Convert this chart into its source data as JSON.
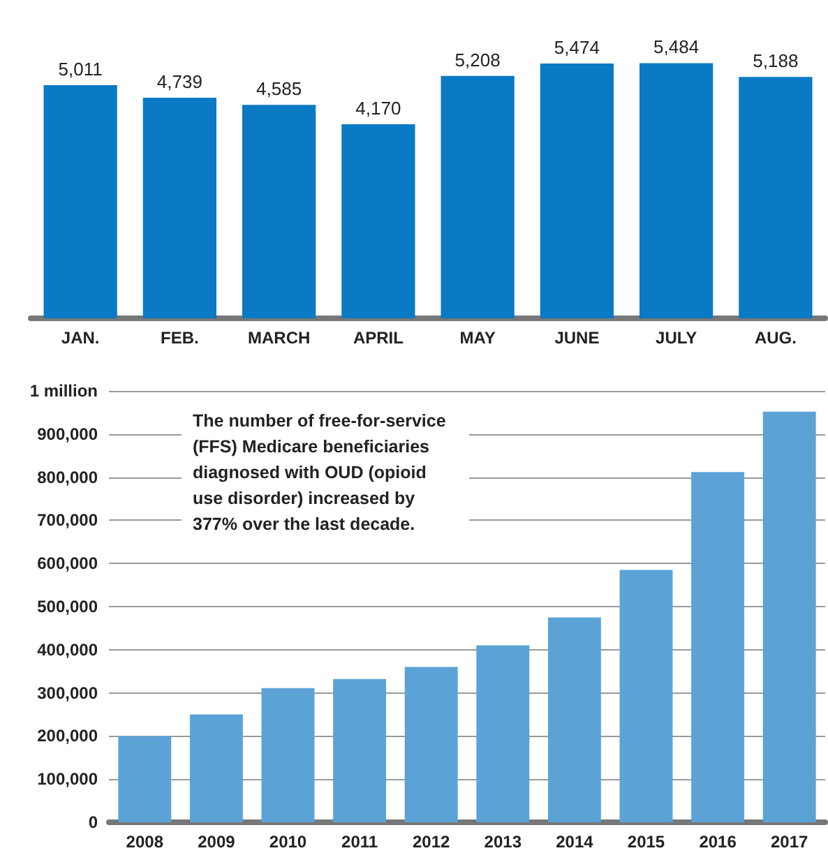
{
  "chart_data": [
    {
      "type": "bar",
      "categories": [
        "JAN.",
        "FEB.",
        "MARCH",
        "APRIL",
        "MAY",
        "JUNE",
        "JULY",
        "AUG."
      ],
      "values": [
        5011,
        4739,
        4585,
        4170,
        5208,
        5474,
        5484,
        5188
      ],
      "color": "#0a7ac4",
      "value_labels": [
        "5,011",
        "4,739",
        "4,585",
        "4,170",
        "5,208",
        "5,474",
        "5,484",
        "5,188"
      ],
      "tick_labels": "x"
    },
    {
      "type": "bar",
      "categories": [
        "2008",
        "2009",
        "2010",
        "2011",
        "2012",
        "2013",
        "2014",
        "2015",
        "2016",
        "2017"
      ],
      "values": [
        200000,
        250000,
        311000,
        332000,
        360000,
        410000,
        475000,
        585000,
        812000,
        952000
      ],
      "color": "#5ba3d6",
      "ylim": [
        0,
        1000000
      ],
      "yticks": [
        0,
        {
          "value": 100000,
          "label": "100,000"
        },
        {
          "value": 200000,
          "label": "200,000"
        },
        {
          "value": 300000,
          "label": "300,000"
        },
        {
          "value": 400000,
          "label": "400,000"
        },
        {
          "value": 500000,
          "label": "500,000"
        },
        {
          "value": 600000,
          "label": "600,000"
        },
        {
          "value": 700000,
          "label": "700,000"
        },
        {
          "value": 800000,
          "label": "800,000"
        },
        {
          "value": 900000,
          "label": "900,000"
        },
        {
          "value": 1000000,
          "label": "1 million"
        }
      ],
      "grid": "y",
      "annotations": [
        "The number of free-for-service (FFS) Medicare beneficiaries diagnosed with OUD (opioid use disorder) increased by 377% over the last decade."
      ]
    }
  ]
}
